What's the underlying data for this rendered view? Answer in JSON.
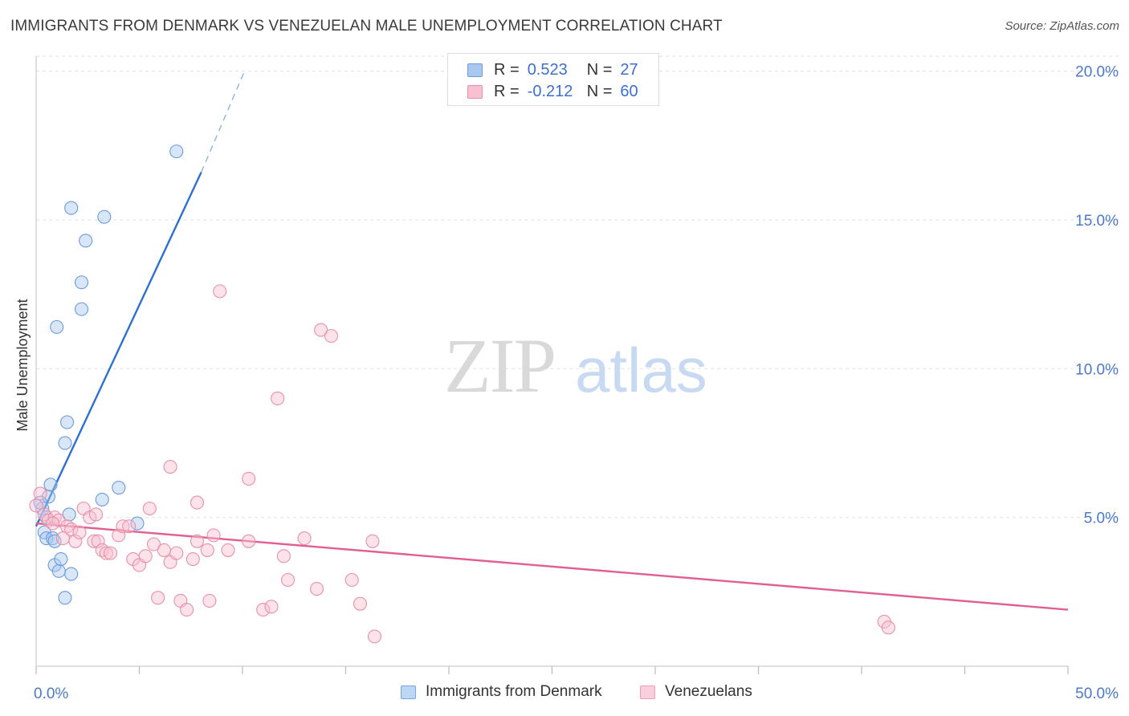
{
  "header": {
    "title": "IMMIGRANTS FROM DENMARK VS VENEZUELAN MALE UNEMPLOYMENT CORRELATION CHART",
    "source": "Source: ZipAtlas.com"
  },
  "watermark": {
    "part1": "ZIP",
    "part2": "atlas"
  },
  "legend": {
    "rows": [
      {
        "r_label": "R =",
        "r_value": "0.523",
        "n_label": "N =",
        "n_value": "27",
        "color": "#a8c8f0",
        "border": "#6a9be0"
      },
      {
        "r_label": "R =",
        "r_value": "-0.212",
        "n_label": "N =",
        "n_value": "60",
        "color": "#f8c0d0",
        "border": "#e890a8"
      }
    ]
  },
  "bottom_legend": {
    "items": [
      {
        "label": "Immigrants from Denmark",
        "color": "#bcd6f5",
        "border": "#7aa6e0"
      },
      {
        "label": "Venezuelans",
        "color": "#f9cfdc",
        "border": "#eaa0b8"
      }
    ]
  },
  "chart_data": {
    "type": "scatter",
    "xlabel": "",
    "ylabel": "Male Unemployment",
    "xlim": [
      0,
      50
    ],
    "ylim": [
      0,
      20.5
    ],
    "x_tick_labels": [
      "0.0%",
      "50.0%"
    ],
    "y_ticks": [
      5,
      10,
      15,
      20
    ],
    "y_tick_labels": [
      "5.0%",
      "10.0%",
      "15.0%",
      "20.0%"
    ],
    "grid": true,
    "legend_position": "top-center",
    "series": [
      {
        "name": "Immigrants from Denmark",
        "color": "#6a9be0",
        "fill": "rgba(168,200,240,0.45)",
        "line_color": "#2f6fd0",
        "points": [
          [
            0.3,
            5.3
          ],
          [
            0.4,
            4.5
          ],
          [
            0.5,
            4.3
          ],
          [
            0.6,
            5.7
          ],
          [
            0.7,
            6.1
          ],
          [
            0.8,
            4.3
          ],
          [
            0.9,
            3.4
          ],
          [
            1.0,
            11.4
          ],
          [
            1.1,
            3.2
          ],
          [
            1.2,
            3.6
          ],
          [
            1.4,
            2.3
          ],
          [
            1.4,
            7.5
          ],
          [
            1.5,
            8.2
          ],
          [
            1.6,
            5.1
          ],
          [
            1.7,
            15.4
          ],
          [
            1.7,
            3.1
          ],
          [
            2.2,
            12.0
          ],
          [
            2.2,
            12.9
          ],
          [
            2.4,
            14.3
          ],
          [
            3.2,
            5.6
          ],
          [
            3.3,
            15.1
          ],
          [
            4.0,
            6.0
          ],
          [
            4.9,
            4.8
          ],
          [
            6.8,
            17.3
          ],
          [
            0.2,
            5.5
          ],
          [
            0.5,
            5.0
          ],
          [
            0.9,
            4.2
          ]
        ],
        "trend_solid": [
          [
            0,
            4.7
          ],
          [
            8.0,
            16.6
          ]
        ],
        "trend_dashed": [
          [
            8.0,
            16.6
          ],
          [
            10.1,
            20.0
          ]
        ]
      },
      {
        "name": "Venezuelans",
        "color": "#e890a8",
        "fill": "rgba(248,192,208,0.45)",
        "line_color": "#e06090",
        "points": [
          [
            0.0,
            5.4
          ],
          [
            0.4,
            5.1
          ],
          [
            0.6,
            4.9
          ],
          [
            0.9,
            5.0
          ],
          [
            1.1,
            4.9
          ],
          [
            1.3,
            4.3
          ],
          [
            1.5,
            4.7
          ],
          [
            1.7,
            4.6
          ],
          [
            1.9,
            4.2
          ],
          [
            2.1,
            4.5
          ],
          [
            2.3,
            5.3
          ],
          [
            2.6,
            5.0
          ],
          [
            2.8,
            4.2
          ],
          [
            3.0,
            4.2
          ],
          [
            3.2,
            3.9
          ],
          [
            3.4,
            3.8
          ],
          [
            3.6,
            3.8
          ],
          [
            4.0,
            4.4
          ],
          [
            4.2,
            4.7
          ],
          [
            4.5,
            4.7
          ],
          [
            4.7,
            3.6
          ],
          [
            5.0,
            3.4
          ],
          [
            5.3,
            3.7
          ],
          [
            5.5,
            5.3
          ],
          [
            5.7,
            4.1
          ],
          [
            5.9,
            2.3
          ],
          [
            6.2,
            3.9
          ],
          [
            6.5,
            3.5
          ],
          [
            6.5,
            6.7
          ],
          [
            6.8,
            3.8
          ],
          [
            7.0,
            2.2
          ],
          [
            7.3,
            1.9
          ],
          [
            7.6,
            3.6
          ],
          [
            7.8,
            4.2
          ],
          [
            7.8,
            5.5
          ],
          [
            8.3,
            3.9
          ],
          [
            8.4,
            2.2
          ],
          [
            8.6,
            4.4
          ],
          [
            9.3,
            3.9
          ],
          [
            10.3,
            6.3
          ],
          [
            10.3,
            4.2
          ],
          [
            11.0,
            1.9
          ],
          [
            11.4,
            2.0
          ],
          [
            11.7,
            9.0
          ],
          [
            12.0,
            3.7
          ],
          [
            12.2,
            2.9
          ],
          [
            13.0,
            4.3
          ],
          [
            13.6,
            2.6
          ],
          [
            13.8,
            11.3
          ],
          [
            14.3,
            11.1
          ],
          [
            8.9,
            12.6
          ],
          [
            15.3,
            2.9
          ],
          [
            15.7,
            2.1
          ],
          [
            16.3,
            4.2
          ],
          [
            16.4,
            1.0
          ],
          [
            41.1,
            1.5
          ],
          [
            41.3,
            1.3
          ],
          [
            0.2,
            5.8
          ],
          [
            0.8,
            4.8
          ],
          [
            2.9,
            5.1
          ]
        ],
        "trend_solid": [
          [
            0,
            4.8
          ],
          [
            50,
            1.9
          ]
        ]
      }
    ]
  }
}
